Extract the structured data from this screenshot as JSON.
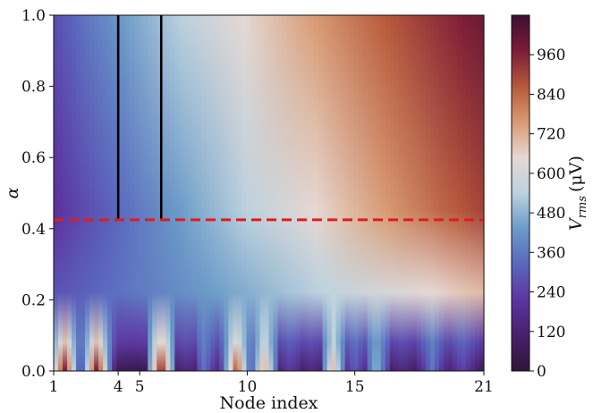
{
  "chart_data": {
    "type": "heatmap",
    "xlabel": "Node index",
    "ylabel": "α",
    "colorbar_label": "V_rms (μV)",
    "colorbar_label_parts": {
      "base": "V",
      "sub": "rms",
      "units": "(μV)"
    },
    "xlim": [
      1,
      21
    ],
    "ylim": [
      0.0,
      1.0
    ],
    "clim": [
      0,
      1080
    ],
    "x_ticks": [
      1,
      4,
      5,
      10,
      15,
      21
    ],
    "x_tick_labels": [
      "1",
      "4",
      "5",
      "10",
      "15",
      "21"
    ],
    "y_ticks": [
      0.0,
      0.2,
      0.4,
      0.6,
      0.8,
      1.0
    ],
    "y_tick_labels": [
      "0.0",
      "0.2",
      "0.4",
      "0.6",
      "0.8",
      "1.0"
    ],
    "colorbar_ticks": [
      0,
      120,
      240,
      360,
      480,
      600,
      720,
      840,
      960
    ],
    "colorbar_tick_labels": [
      "0",
      "120",
      "240",
      "360",
      "480",
      "600",
      "720",
      "840",
      "960"
    ],
    "colormap": "twilight_shifted",
    "colormap_stops": [
      "#2f1439",
      "#49206b",
      "#5d34a0",
      "#5a67be",
      "#6b9bc8",
      "#bcd2de",
      "#e6d8d3",
      "#d89a73",
      "#b6583a",
      "#7c1c38",
      "#3a1030"
    ],
    "threshold_line": {
      "y": 0.425,
      "style": "dashed",
      "color": "#e31a1c"
    },
    "vertical_lines": [
      {
        "x": 4.0,
        "y_range": [
          0.425,
          1.0
        ],
        "color": "#000000"
      },
      {
        "x": 6.0,
        "y_range": [
          0.425,
          1.0
        ],
        "color": "#000000"
      }
    ],
    "band_peaks": [
      {
        "x": 1.5,
        "value": 1000
      },
      {
        "x": 3.0,
        "value": 1000
      },
      {
        "x": 4.7,
        "value": 40
      },
      {
        "x": 6.0,
        "value": 1000
      },
      {
        "x": 7.2,
        "value": 150
      },
      {
        "x": 8.0,
        "value": 350
      },
      {
        "x": 9.5,
        "value": 900
      },
      {
        "x": 10.8,
        "value": 760
      },
      {
        "x": 12.0,
        "value": 220
      },
      {
        "x": 13.0,
        "value": 150
      },
      {
        "x": 14.0,
        "value": 700
      },
      {
        "x": 15.0,
        "value": 300
      },
      {
        "x": 16.0,
        "value": 500
      },
      {
        "x": 17.2,
        "value": 150
      },
      {
        "x": 18.6,
        "value": 350
      },
      {
        "x": 20.0,
        "value": 250
      }
    ]
  }
}
